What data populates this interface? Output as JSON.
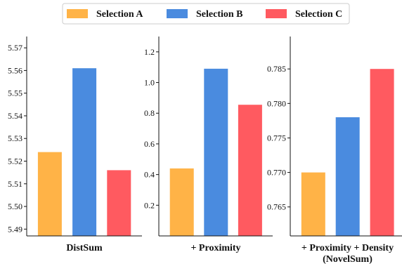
{
  "legend": {
    "items": [
      {
        "label": "Selection A",
        "color": "#FFB347"
      },
      {
        "label": "Selection B",
        "color": "#4A8BDF"
      },
      {
        "label": "Selection C",
        "color": "#FF5A60"
      }
    ]
  },
  "chart_data": [
    {
      "type": "bar",
      "xlabel": "DistSum",
      "series": [
        {
          "name": "Selection A",
          "value": 5.524
        },
        {
          "name": "Selection B",
          "value": 5.561
        },
        {
          "name": "Selection C",
          "value": 5.516
        }
      ],
      "ylim": [
        5.487,
        5.575
      ],
      "yticks": [
        5.49,
        5.5,
        5.51,
        5.52,
        5.53,
        5.54,
        5.55,
        5.56,
        5.57
      ],
      "ytick_labels": [
        "5.49",
        "5.50",
        "5.51",
        "5.52",
        "5.53",
        "5.54",
        "5.55",
        "5.56",
        "5.57"
      ]
    },
    {
      "type": "bar",
      "xlabel": "+ Proximity",
      "series": [
        {
          "name": "Selection A",
          "value": 0.44
        },
        {
          "name": "Selection B",
          "value": 1.09
        },
        {
          "name": "Selection C",
          "value": 0.855
        }
      ],
      "ylim": [
        0.0,
        1.3
      ],
      "yticks": [
        0.2,
        0.4,
        0.6,
        0.8,
        1.0,
        1.2
      ],
      "ytick_labels": [
        "0.2",
        "0.4",
        "0.6",
        "0.8",
        "1.0",
        "1.2"
      ]
    },
    {
      "type": "bar",
      "xlabel": "+ Proximity  + Density",
      "xlabel2": "(NovelSum)",
      "series": [
        {
          "name": "Selection A",
          "value": 0.77
        },
        {
          "name": "Selection B",
          "value": 0.778
        },
        {
          "name": "Selection C",
          "value": 0.785
        }
      ],
      "ylim": [
        0.7608,
        0.7897
      ],
      "yticks": [
        0.765,
        0.77,
        0.775,
        0.78,
        0.785
      ],
      "ytick_labels": [
        "0.765",
        "0.770",
        "0.775",
        "0.780",
        "0.785"
      ]
    }
  ]
}
